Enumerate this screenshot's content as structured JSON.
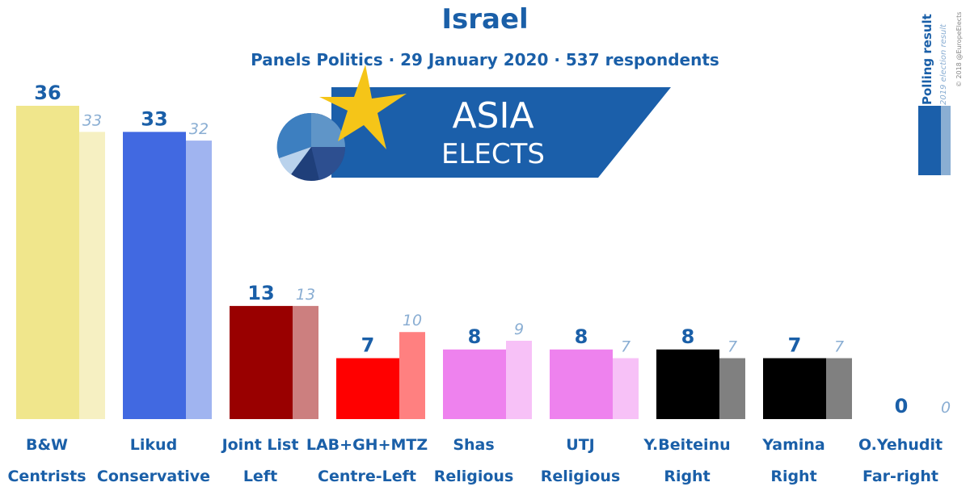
{
  "header": {
    "title": "Israel",
    "subtitle": "Panels Politics · 29 January 2020 · 537 respondents"
  },
  "logo": {
    "line1": "ASIA",
    "line2": "ELECTS"
  },
  "legend": {
    "current_label": "Polling result",
    "previous_label": "2019 election result",
    "credit": "© 2018 @EuropeElects"
  },
  "colors": {
    "text": "#1a5fa8",
    "previous_value_text": "#8aaed3",
    "logo_band": "#1b5faa",
    "star": "#f5c518"
  },
  "chart_data": {
    "type": "bar",
    "ylim": [
      0,
      38
    ],
    "categories": [
      "B&W",
      "Likud",
      "Joint List",
      "LAB+GH+MTZ",
      "Shas",
      "UTJ",
      "Y.Beiteinu",
      "Yamina",
      "O.Yehudit"
    ],
    "subcategories": [
      "Centrists",
      "Conservative",
      "Left",
      "Centre-Left",
      "Religious",
      "Religious",
      "Right",
      "Right",
      "Far-right"
    ],
    "series": [
      {
        "name": "Polling result",
        "values": [
          36,
          33,
          13,
          7,
          8,
          8,
          8,
          7,
          0
        ]
      },
      {
        "name": "2019 election result",
        "values": [
          33,
          32,
          13,
          10,
          9,
          7,
          7,
          7,
          0
        ]
      }
    ],
    "bar_colors": [
      "#f0e68c",
      "#4169e1",
      "#990000",
      "#ff0000",
      "#ee82ee",
      "#ee82ee",
      "#000000",
      "#000000",
      "#8b4513"
    ],
    "prev_bar_colors": [
      "#f6f0c2",
      "#a0b4f0",
      "#cc7f7f",
      "#ff8080",
      "#f7c1f7",
      "#f7c1f7",
      "#808080",
      "#808080",
      "#c5a289"
    ]
  }
}
